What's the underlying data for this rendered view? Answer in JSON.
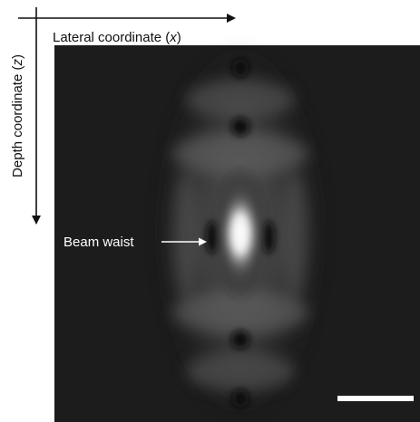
{
  "figure": {
    "x_axis": {
      "before": "Lateral coordinate (",
      "variable": "x",
      "after": ")"
    },
    "y_axis": {
      "before": "Depth coordinate (",
      "variable": "z",
      "after": ")"
    },
    "annotation": "Beam waist"
  }
}
